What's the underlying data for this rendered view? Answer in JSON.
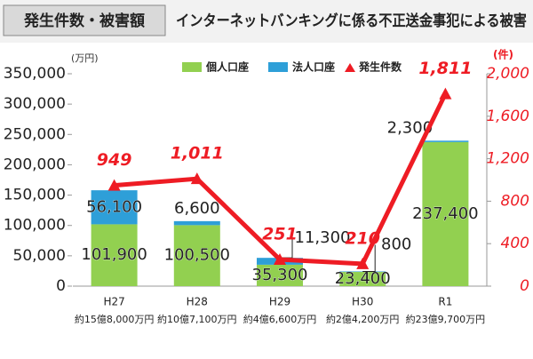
{
  "header_label": "発生件数・被害額",
  "chart_data": {
    "type": "bar-line",
    "title": "インターネットバンキングに係る不正送金事犯による被害",
    "y_unit": "(万円)",
    "y2_unit": "(件)",
    "categories": [
      "H27",
      "H28",
      "H29",
      "H30",
      "R1"
    ],
    "category_notes": [
      "約15億8,000万円",
      "約10億7,100万円",
      "約4億6,600万円",
      "約2億4,200万円",
      "約23億9,700万円"
    ],
    "ylim": [
      0,
      350000
    ],
    "yticks": [
      0,
      {
        "value": 50000,
        "label": "50,000"
      },
      {
        "value": 100000,
        "label": "100,000"
      },
      {
        "value": 150000,
        "label": "150,000"
      },
      {
        "value": 200000,
        "label": "200,000"
      },
      {
        "value": 250000,
        "label": "250,000"
      },
      {
        "value": 300000,
        "label": "300,000"
      },
      {
        "value": 350000,
        "label": "350,000"
      }
    ],
    "y2lim": [
      0,
      2000
    ],
    "y2ticks": [
      0,
      400,
      800,
      {
        "value": 1200,
        "label": "1,200"
      },
      {
        "value": 1600,
        "label": "1,600"
      },
      {
        "value": 2000,
        "label": "2,000"
      }
    ],
    "series": [
      {
        "name": "個人口座",
        "color": "#92d050",
        "type": "bar",
        "values": [
          101900,
          100500,
          35300,
          23400,
          237400
        ],
        "value_labels": [
          "101,900",
          "100,500",
          "35,300",
          "23,400",
          "237,400"
        ]
      },
      {
        "name": "法人口座",
        "color": "#2e9fd8",
        "type": "bar",
        "values": [
          56100,
          6600,
          11300,
          800,
          2300
        ],
        "value_labels": [
          "56,100",
          "6,600",
          "11,300",
          "800",
          "2,300"
        ]
      },
      {
        "name": "発生件数",
        "color": "#ee1c24",
        "type": "line",
        "axis": "y2",
        "values": [
          949,
          1011,
          251,
          210,
          1811
        ],
        "value_labels": [
          "949",
          "1,011",
          "251",
          "210",
          "1,811"
        ]
      }
    ]
  }
}
